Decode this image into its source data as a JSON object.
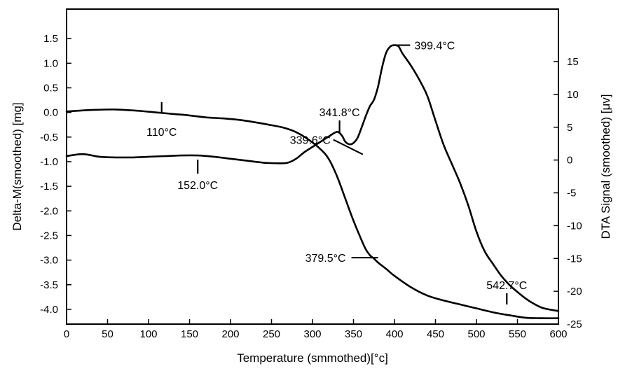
{
  "chart_data": {
    "type": "line",
    "xlabel": "Temperature (smmothed)[°c]",
    "ylabel_left": "Delta-M(smoothed) [mg]",
    "ylabel_right": "DTA Signal (smoothed) [μv]",
    "xlim": [
      0,
      600
    ],
    "ylim_left": [
      -4.3,
      2.1
    ],
    "ylim_right": [
      -25,
      23
    ],
    "x_ticks": [
      0,
      50,
      100,
      150,
      200,
      250,
      300,
      350,
      400,
      450,
      500,
      550,
      600
    ],
    "y_left_ticks": [
      1.5,
      1.0,
      0.5,
      0.0,
      -0.5,
      -1.0,
      -1.5,
      -2.0,
      -2.5,
      -3.0,
      -3.5,
      -4.0
    ],
    "y_left_tick_labels": [
      "1.5",
      "1.0",
      "0.5",
      "0.0",
      "-0.5",
      "-1.0",
      "-1.5",
      "-2.0",
      "-2.5",
      "-3.0",
      "-3.5",
      "-4.0"
    ],
    "y_right_ticks": [
      15,
      10,
      5,
      0,
      -5,
      -10,
      -15,
      -20,
      -25
    ],
    "grid": false,
    "series": [
      {
        "axis": "left",
        "x": [
          0,
          30,
          60,
          90,
          110,
          130,
          150,
          170,
          190,
          210,
          230,
          250,
          265,
          280,
          295,
          310,
          320,
          330,
          340,
          350,
          360,
          365,
          370,
          375,
          380,
          390,
          400,
          420,
          440,
          460,
          480,
          500,
          520,
          540,
          560,
          580,
          600
        ],
        "y": [
          0.02,
          0.05,
          0.06,
          0.03,
          0.0,
          -0.03,
          -0.06,
          -0.1,
          -0.12,
          -0.15,
          -0.2,
          -0.26,
          -0.31,
          -0.4,
          -0.55,
          -0.75,
          -0.95,
          -1.3,
          -1.75,
          -2.2,
          -2.6,
          -2.78,
          -2.9,
          -2.97,
          -3.05,
          -3.18,
          -3.32,
          -3.55,
          -3.72,
          -3.82,
          -3.9,
          -3.98,
          -4.06,
          -4.12,
          -4.17,
          -4.18,
          -4.18
        ]
      },
      {
        "axis": "right",
        "x": [
          0,
          20,
          40,
          60,
          80,
          100,
          120,
          140,
          160,
          180,
          200,
          220,
          240,
          260,
          270,
          280,
          290,
          300,
          310,
          320,
          330,
          336,
          340,
          345,
          350,
          355,
          360,
          365,
          370,
          375,
          380,
          385,
          390,
          395,
          400,
          405,
          410,
          420,
          430,
          440,
          450,
          460,
          470,
          480,
          490,
          500,
          510,
          520,
          530,
          540,
          550,
          560,
          570,
          580,
          590,
          600
        ],
        "y": [
          0.6,
          0.9,
          0.5,
          0.4,
          0.4,
          0.5,
          0.6,
          0.7,
          0.7,
          0.5,
          0.2,
          -0.1,
          -0.4,
          -0.5,
          -0.4,
          0.2,
          1.2,
          2.0,
          2.8,
          3.6,
          4.3,
          3.7,
          2.8,
          2.4,
          2.6,
          3.4,
          5.0,
          6.7,
          8.2,
          9.2,
          11.2,
          14.2,
          16.4,
          17.3,
          17.5,
          17.3,
          16.2,
          14.4,
          12.3,
          9.8,
          6.0,
          2.3,
          -0.6,
          -3.5,
          -6.9,
          -10.9,
          -13.9,
          -15.8,
          -17.6,
          -19.0,
          -20.1,
          -21.1,
          -21.9,
          -22.5,
          -22.8,
          -23.0
        ]
      }
    ],
    "annotations": [
      {
        "text": "110°C",
        "x": 116,
        "axis": "left",
        "y": 0.01
      },
      {
        "text": "152.0°C",
        "x": 160,
        "axis": "right",
        "y": 0.7
      },
      {
        "text": "339.6°C",
        "x": 334,
        "axis": "right",
        "y": 1.5
      },
      {
        "text": "341.8°C",
        "x": 333,
        "axis": "right",
        "y": 3.9
      },
      {
        "text": "399.4°C",
        "x": 402,
        "axis": "right",
        "y": 17.5
      },
      {
        "text": "379.5°C",
        "x": 380,
        "axis": "left",
        "y": -2.95
      },
      {
        "text": "542.7°C",
        "x": 537,
        "axis": "left",
        "y": -4.1
      }
    ]
  }
}
